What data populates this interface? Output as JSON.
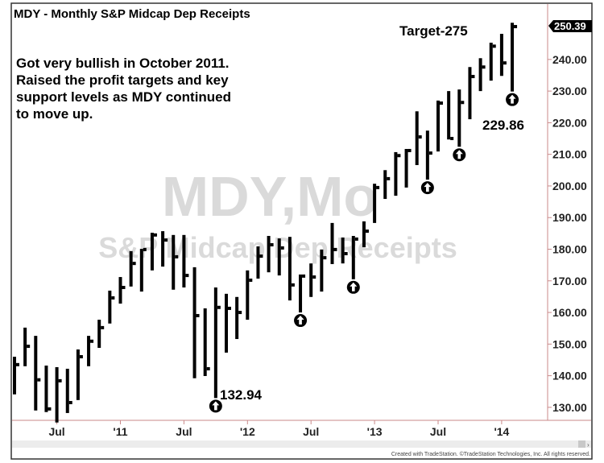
{
  "chart_data": {
    "type": "ohlc",
    "title": "MDY - Monthly  S&P Midcap Dep Receipts",
    "watermark": [
      "MDY,Mo",
      "S&P Midcap Dep Receipts"
    ],
    "ylim": [
      126.4,
      253.2
    ],
    "y_ticks": [
      "130.00",
      "140.00",
      "150.00",
      "160.00",
      "170.00",
      "180.00",
      "190.00",
      "200.00",
      "210.00",
      "220.00",
      "230.00",
      "240.00"
    ],
    "last_price": "250.39",
    "x_ticks": [
      {
        "index": 4,
        "label": "Jul"
      },
      {
        "index": 10,
        "label": "'11"
      },
      {
        "index": 16,
        "label": "Jul"
      },
      {
        "index": 22,
        "label": "'12"
      },
      {
        "index": 28,
        "label": "Jul"
      },
      {
        "index": 34,
        "label": "'13"
      },
      {
        "index": 40,
        "label": "Jul"
      },
      {
        "index": 46,
        "label": "'14"
      }
    ],
    "grid": false,
    "colors": {
      "bars": "#000000",
      "axis": "#c98a8a",
      "watermark": "#d9d9d9",
      "last_price_tag": "#000000"
    },
    "bars": [
      {
        "month": "2010-03",
        "high": 146.0,
        "low": 134.1,
        "close": 143.5
      },
      {
        "month": "2010-04",
        "high": 155.2,
        "low": 143.0,
        "close": 149.3
      },
      {
        "month": "2010-05",
        "high": 152.6,
        "low": 129.0,
        "close": 138.7
      },
      {
        "month": "2010-06",
        "high": 143.2,
        "low": 128.5,
        "close": 129.5
      },
      {
        "month": "2010-07",
        "high": 142.7,
        "low": 125.2,
        "close": 138.4
      },
      {
        "month": "2010-08",
        "high": 142.2,
        "low": 128.2,
        "close": 131.5
      },
      {
        "month": "2010-09",
        "high": 148.3,
        "low": 132.3,
        "close": 146.0
      },
      {
        "month": "2010-10",
        "high": 152.6,
        "low": 143.0,
        "close": 150.9
      },
      {
        "month": "2010-11",
        "high": 157.7,
        "low": 148.8,
        "close": 155.2
      },
      {
        "month": "2010-12",
        "high": 166.9,
        "low": 156.5,
        "close": 164.6
      },
      {
        "month": "2011-01",
        "high": 171.2,
        "low": 162.8,
        "close": 167.9
      },
      {
        "month": "2011-02",
        "high": 179.4,
        "low": 168.2,
        "close": 175.5
      },
      {
        "month": "2011-03",
        "high": 180.1,
        "low": 166.6,
        "close": 179.9
      },
      {
        "month": "2011-04",
        "high": 185.2,
        "low": 173.3,
        "close": 184.5
      },
      {
        "month": "2011-05",
        "high": 185.7,
        "low": 174.5,
        "close": 182.9
      },
      {
        "month": "2011-06",
        "high": 184.5,
        "low": 167.2,
        "close": 177.6
      },
      {
        "month": "2011-07",
        "high": 184.5,
        "low": 167.9,
        "close": 171.7
      },
      {
        "month": "2011-08",
        "high": 174.3,
        "low": 139.2,
        "close": 159.0
      },
      {
        "month": "2011-09",
        "high": 161.3,
        "low": 139.9,
        "close": 142.2
      },
      {
        "month": "2011-10",
        "high": 167.9,
        "low": 132.94,
        "close": 161.6
      },
      {
        "month": "2011-11",
        "high": 165.9,
        "low": 147.3,
        "close": 161.3
      },
      {
        "month": "2011-12",
        "high": 164.9,
        "low": 151.6,
        "close": 160.0
      },
      {
        "month": "2012-01",
        "high": 173.3,
        "low": 157.7,
        "close": 170.2
      },
      {
        "month": "2012-02",
        "high": 180.9,
        "low": 170.7,
        "close": 177.8
      },
      {
        "month": "2012-03",
        "high": 184.2,
        "low": 172.7,
        "close": 181.4
      },
      {
        "month": "2012-04",
        "high": 183.4,
        "low": 171.7,
        "close": 180.4
      },
      {
        "month": "2012-05",
        "high": 183.9,
        "low": 163.8,
        "close": 168.7
      },
      {
        "month": "2012-06",
        "high": 172.0,
        "low": 160.0,
        "close": 171.5
      },
      {
        "month": "2012-07",
        "high": 175.5,
        "low": 164.9,
        "close": 171.2
      },
      {
        "month": "2012-08",
        "high": 179.9,
        "low": 166.6,
        "close": 177.3
      },
      {
        "month": "2012-09",
        "high": 188.3,
        "low": 175.3,
        "close": 179.9
      },
      {
        "month": "2012-10",
        "high": 183.7,
        "low": 175.5,
        "close": 178.6
      },
      {
        "month": "2012-11",
        "high": 184.2,
        "low": 170.5,
        "close": 183.2
      },
      {
        "month": "2012-12",
        "high": 188.8,
        "low": 180.6,
        "close": 185.7
      },
      {
        "month": "2013-01",
        "high": 200.7,
        "low": 188.3,
        "close": 199.5
      },
      {
        "month": "2013-02",
        "high": 205.0,
        "low": 195.9,
        "close": 202.3
      },
      {
        "month": "2013-03",
        "high": 210.7,
        "low": 196.9,
        "close": 209.6
      },
      {
        "month": "2013-04",
        "high": 211.7,
        "low": 199.5,
        "close": 211.2
      },
      {
        "month": "2013-05",
        "high": 223.6,
        "low": 206.6,
        "close": 215.5
      },
      {
        "month": "2013-06",
        "high": 217.5,
        "low": 202.0,
        "close": 210.4
      },
      {
        "month": "2013-07",
        "high": 227.0,
        "low": 210.9,
        "close": 226.2
      },
      {
        "month": "2013-08",
        "high": 230.0,
        "low": 214.7,
        "close": 215.0
      },
      {
        "month": "2013-09",
        "high": 230.5,
        "low": 212.4,
        "close": 226.4
      },
      {
        "month": "2013-10",
        "high": 237.6,
        "low": 221.1,
        "close": 234.6
      },
      {
        "month": "2013-11",
        "high": 240.4,
        "low": 230.0,
        "close": 237.6
      },
      {
        "month": "2013-12",
        "high": 245.3,
        "low": 233.3,
        "close": 244.2
      },
      {
        "month": "2014-01",
        "high": 248.1,
        "low": 234.8,
        "close": 238.9
      },
      {
        "month": "2014-02",
        "high": 251.6,
        "low": 229.86,
        "close": 250.39
      }
    ],
    "arrow_markers": [
      19,
      27,
      32,
      39,
      42,
      47
    ],
    "annotations": {
      "note": [
        "Got very bullish in October 2011.",
        "Raised the profit targets and key",
        "support levels as MDY continued",
        "to move up."
      ],
      "low_label": "132.94",
      "recent_low_label": "229.86",
      "target": "Target-275"
    }
  },
  "footer": "Created with TradeStation. ©TradeStation Technologies, Inc. All rights reserved."
}
